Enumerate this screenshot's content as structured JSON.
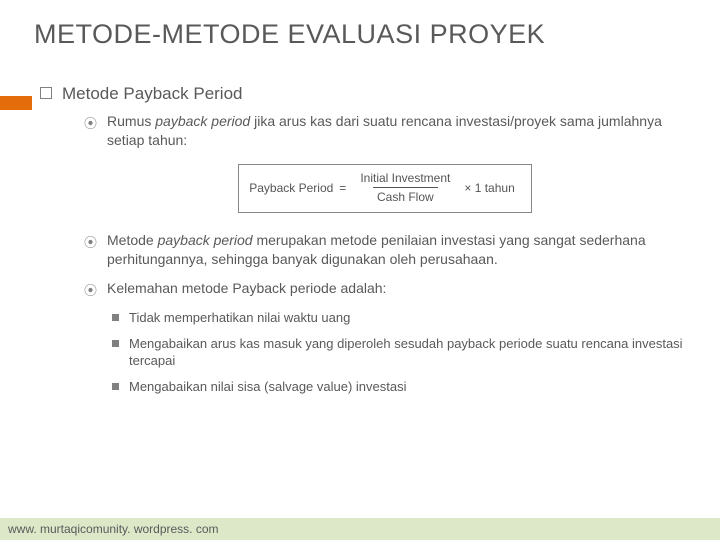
{
  "title": "METODE-METODE EVALUASI PROYEK",
  "accent_color": "#e46c0a",
  "level1": {
    "text": "Metode Payback Period"
  },
  "level2": [
    {
      "prefix": "Rumus ",
      "italic": "payback period ",
      "rest": "jika arus kas dari suatu rencana investasi/proyek sama jumlahnya setiap tahun:"
    },
    {
      "prefix": "Metode ",
      "italic": "payback period ",
      "rest": "merupakan metode penilaian investasi yang sangat sederhana perhitungannya, sehingga banyak digunakan oleh perusahaan."
    },
    {
      "prefix": "Kelemahan metode Payback periode adalah:",
      "italic": "",
      "rest": ""
    }
  ],
  "formula": {
    "lhs": "Payback Period",
    "eq": "=",
    "num": "Initial Investment",
    "den": "Cash Flow",
    "suffix": "× 1 tahun"
  },
  "level3": [
    "Tidak memperhatikan nilai waktu uang",
    "Mengabaikan arus kas masuk yang diperoleh sesudah payback periode suatu rencana investasi tercapai",
    "Mengabaikan nilai sisa (salvage value) investasi"
  ],
  "footer": "www. murtaqicomunity. wordpress. com",
  "footer_bg": "#dde8c9"
}
